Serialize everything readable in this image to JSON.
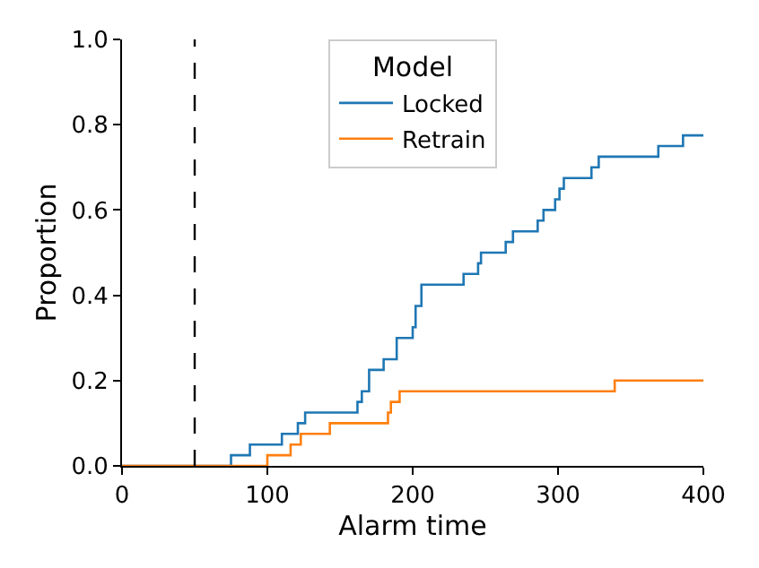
{
  "chart_data": {
    "type": "step",
    "xlabel": "Alarm time",
    "ylabel": "Proportion",
    "legend_title": "Model",
    "legend": "top center",
    "grid": false,
    "series": [
      {
        "name": "Locked",
        "color": "#1f77b4",
        "x": [
          0,
          75,
          88,
          110,
          121,
          126,
          162,
          165,
          170,
          180,
          189,
          200,
          202,
          206,
          235,
          245,
          247,
          264,
          269,
          286,
          290,
          298,
          301,
          304,
          323,
          328,
          369,
          386,
          400
        ],
        "values": [
          0,
          0.025,
          0.05,
          0.075,
          0.1,
          0.125,
          0.15,
          0.175,
          0.225,
          0.25,
          0.3,
          0.325,
          0.375,
          0.425,
          0.45,
          0.475,
          0.5,
          0.525,
          0.55,
          0.575,
          0.6,
          0.625,
          0.65,
          0.675,
          0.7,
          0.725,
          0.75,
          0.775,
          0.775
        ]
      },
      {
        "name": "Retrain",
        "color": "#ff7f0e",
        "x": [
          0,
          100,
          116,
          123,
          143,
          183,
          185,
          191,
          339,
          400
        ],
        "values": [
          0,
          0.025,
          0.05,
          0.075,
          0.1,
          0.125,
          0.15,
          0.175,
          0.2,
          0.2
        ]
      }
    ],
    "ref_lines": [
      {
        "axis": "x",
        "value": 50,
        "color": "#000000",
        "line_style": "dashed"
      }
    ],
    "xlim": [
      0,
      400
    ],
    "xticks": [
      0,
      100,
      200,
      300,
      400
    ],
    "ylim": [
      0,
      1
    ],
    "yticks": [
      {
        "value": 0,
        "label": "0.0"
      },
      {
        "value": 0.2,
        "label": "0.2"
      },
      {
        "value": 0.4,
        "label": "0.4"
      },
      {
        "value": 0.6,
        "label": "0.6"
      },
      {
        "value": 0.8,
        "label": "0.8"
      },
      {
        "value": 1,
        "label": "1.0"
      }
    ]
  }
}
